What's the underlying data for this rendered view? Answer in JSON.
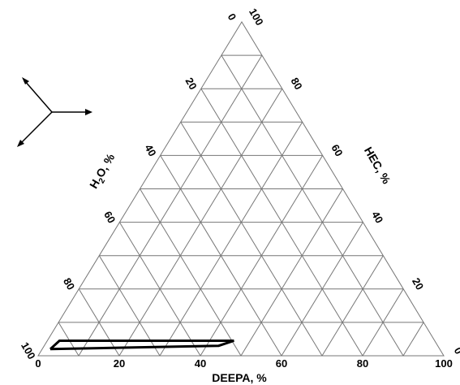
{
  "chart_data": {
    "type": "ternary",
    "grid_step": 10,
    "grid": true,
    "axes": {
      "bottom": {
        "label_parts": [
          "DEEPA, %"
        ],
        "ticks": [
          "0",
          "20",
          "40",
          "60",
          "80",
          "100"
        ]
      },
      "left": {
        "label_parts": [
          "H",
          "2",
          "O, %"
        ],
        "ticks": [
          "100",
          "80",
          "60",
          "40",
          "20",
          "0"
        ]
      },
      "right": {
        "label_parts": [
          "HEC, %"
        ],
        "ticks": [
          "0",
          "20",
          "40",
          "60",
          "80",
          "100"
        ]
      }
    },
    "region": {
      "points": [
        {
          "DEEPA": 2,
          "HEC": 2,
          "H2O": 96
        },
        {
          "DEEPA": 3,
          "HEC": 4.5,
          "H2O": 92.5
        },
        {
          "DEEPA": 46,
          "HEC": 4.5,
          "H2O": 49.5
        },
        {
          "DEEPA": 43,
          "HEC": 3,
          "H2O": 54
        },
        {
          "DEEPA": 2,
          "HEC": 2,
          "H2O": 96
        }
      ]
    }
  }
}
